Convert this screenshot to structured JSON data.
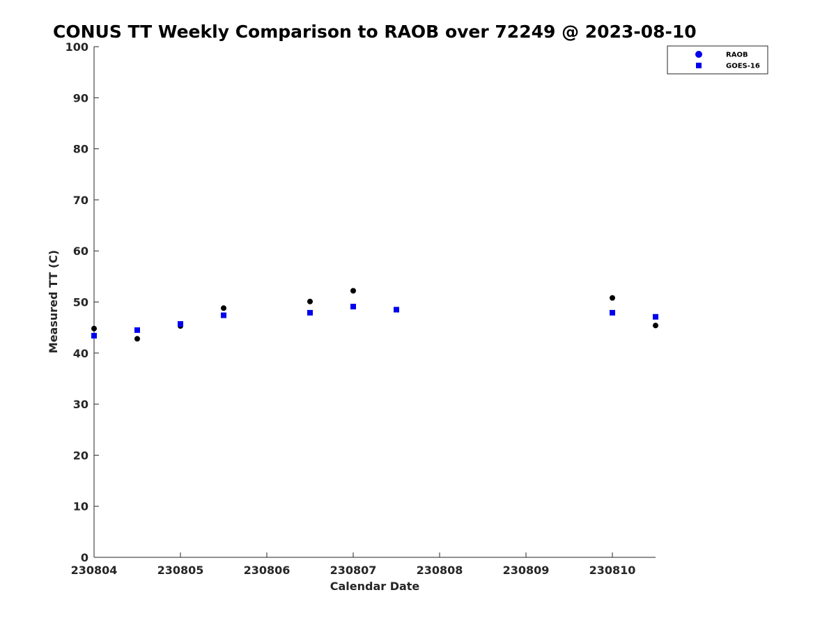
{
  "chart_data": {
    "type": "scatter",
    "title": "CONUS TT Weekly Comparison to RAOB over 72249 @ 2023-08-10",
    "xlabel": "Calendar Date",
    "ylabel": "Measured TT (C)",
    "x_ticks": [
      "230804",
      "230805",
      "230806",
      "230807",
      "230808",
      "230809",
      "230810"
    ],
    "xlim": [
      "230804 00Z",
      "230810 12Z"
    ],
    "ylim": [
      0,
      100
    ],
    "y_ticks": [
      0,
      10,
      20,
      30,
      40,
      50,
      60,
      70,
      80,
      90,
      100
    ],
    "grid": false,
    "legend_position": "top-right",
    "series": [
      {
        "name": "RAOB",
        "marker": "circle",
        "color": "#000000",
        "legend_color": "#0000ee",
        "points": [
          {
            "x": "230804 00Z",
            "y": 44.8
          },
          {
            "x": "230804 12Z",
            "y": 42.8
          },
          {
            "x": "230805 00Z",
            "y": 45.3
          },
          {
            "x": "230805 12Z",
            "y": 48.8
          },
          {
            "x": "230806 12Z",
            "y": 50.1
          },
          {
            "x": "230807 00Z",
            "y": 52.2
          },
          {
            "x": "230807 12Z",
            "y": 48.5
          },
          {
            "x": "230810 00Z",
            "y": 50.8
          },
          {
            "x": "230810 12Z",
            "y": 45.4
          }
        ]
      },
      {
        "name": "GOES-16",
        "marker": "square",
        "color": "#0000ee",
        "legend_color": "#0000ee",
        "points": [
          {
            "x": "230804 00Z",
            "y": 43.4
          },
          {
            "x": "230804 12Z",
            "y": 44.5
          },
          {
            "x": "230805 00Z",
            "y": 45.7
          },
          {
            "x": "230805 12Z",
            "y": 47.4
          },
          {
            "x": "230806 12Z",
            "y": 47.9
          },
          {
            "x": "230807 00Z",
            "y": 49.1
          },
          {
            "x": "230807 12Z",
            "y": 48.5
          },
          {
            "x": "230810 00Z",
            "y": 47.9
          },
          {
            "x": "230810 12Z",
            "y": 47.1
          }
        ]
      }
    ]
  }
}
